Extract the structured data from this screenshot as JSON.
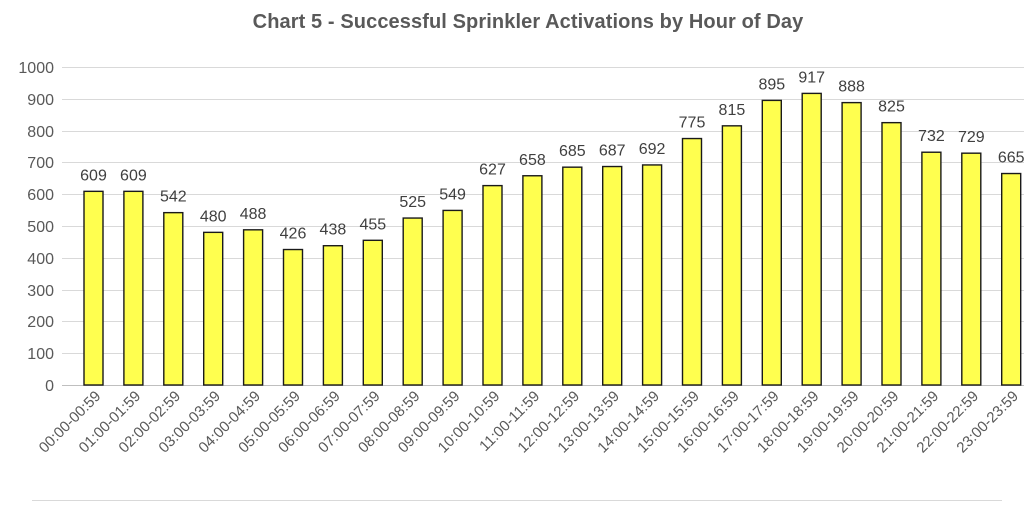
{
  "chart_data": {
    "type": "bar",
    "title": "Chart 5 - Successful Sprinkler Activations by Hour of Day",
    "xlabel": "",
    "ylabel": "",
    "ylim": [
      0,
      1000
    ],
    "yticks": [
      0,
      100,
      200,
      300,
      400,
      500,
      600,
      700,
      800,
      900,
      1000
    ],
    "grid": true,
    "data_labels": true,
    "colors": {
      "bar_fill": "#FFFF4F",
      "bar_stroke": "#1a1a1a"
    },
    "categories": [
      "00:00-00:59",
      "01:00-01:59",
      "02:00-02:59",
      "03:00-03:59",
      "04:00-04:59",
      "05:00-05:59",
      "06:00-06:59",
      "07:00-07:59",
      "08:00-08:59",
      "09:00-09:59",
      "10:00-10:59",
      "11:00-11:59",
      "12:00-12:59",
      "13:00-13:59",
      "14:00-14:59",
      "15:00-15:59",
      "16:00-16:59",
      "17:00-17:59",
      "18:00-18:59",
      "19:00-19:59",
      "20:00-20:59",
      "21:00-21:59",
      "22:00-22:59",
      "23:00-23:59"
    ],
    "values": [
      609,
      609,
      542,
      480,
      488,
      426,
      438,
      455,
      525,
      549,
      627,
      658,
      685,
      687,
      692,
      775,
      815,
      895,
      917,
      888,
      825,
      732,
      729,
      665
    ]
  }
}
